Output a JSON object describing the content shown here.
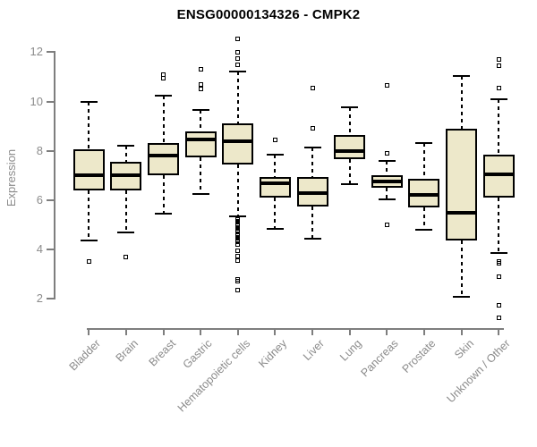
{
  "figure": {
    "background": "#ffffff"
  },
  "chart_data": {
    "type": "boxplot",
    "title": "ENSG00000134326 - CMPK2",
    "ylabel": "Expression",
    "xlabel": "",
    "ylim": [
      2,
      12
    ],
    "yticks": [
      2,
      4,
      6,
      8,
      10,
      12
    ],
    "grid": false,
    "legend": null,
    "categories": [
      "Bladder",
      "Brain",
      "Breast",
      "Gastric",
      "Hematopoietic cells",
      "Kidney",
      "Liver",
      "Lung",
      "Pancreas",
      "Prostate",
      "Skin",
      "Unknown / Other"
    ],
    "series": [
      {
        "name": "Bladder",
        "whisker_low": 4.35,
        "q1": 6.4,
        "median": 7.0,
        "q3": 8.05,
        "whisker_high": 10.0,
        "outliers": [
          3.5
        ]
      },
      {
        "name": "Brain",
        "whisker_low": 4.7,
        "q1": 6.4,
        "median": 7.0,
        "q3": 7.55,
        "whisker_high": 8.2,
        "outliers": [
          3.7
        ]
      },
      {
        "name": "Breast",
        "whisker_low": 5.45,
        "q1": 7.0,
        "median": 7.8,
        "q3": 8.3,
        "whisker_high": 10.25,
        "outliers": [
          11.1,
          10.95
        ]
      },
      {
        "name": "Gastric",
        "whisker_low": 6.25,
        "q1": 7.75,
        "median": 8.45,
        "q3": 8.8,
        "whisker_high": 9.65,
        "outliers": [
          11.3,
          10.7,
          10.5
        ]
      },
      {
        "name": "Hematopoietic cells",
        "whisker_low": 5.35,
        "q1": 7.45,
        "median": 8.4,
        "q3": 9.1,
        "whisker_high": 11.2,
        "outliers": [
          12.55,
          12.0,
          11.75,
          11.5,
          5.25,
          5.2,
          5.15,
          5.1,
          5.05,
          5.0,
          4.95,
          4.9,
          4.85,
          4.8,
          4.75,
          4.7,
          4.65,
          4.6,
          4.55,
          4.5,
          4.45,
          4.4,
          4.3,
          4.2,
          3.95,
          3.75,
          3.55,
          2.8,
          2.7,
          2.35
        ]
      },
      {
        "name": "Kidney",
        "whisker_low": 4.85,
        "q1": 6.1,
        "median": 6.7,
        "q3": 6.95,
        "whisker_high": 7.85,
        "outliers": [
          8.45
        ]
      },
      {
        "name": "Liver",
        "whisker_low": 4.45,
        "q1": 5.75,
        "median": 6.3,
        "q3": 6.95,
        "whisker_high": 8.15,
        "outliers": [
          10.55,
          8.9
        ]
      },
      {
        "name": "Lung",
        "whisker_low": 6.65,
        "q1": 7.65,
        "median": 8.0,
        "q3": 8.65,
        "whisker_high": 9.75,
        "outliers": []
      },
      {
        "name": "Pancreas",
        "whisker_low": 6.05,
        "q1": 6.5,
        "median": 6.75,
        "q3": 7.0,
        "whisker_high": 7.6,
        "outliers": [
          10.65,
          7.9,
          5.0
        ]
      },
      {
        "name": "Prostate",
        "whisker_low": 4.8,
        "q1": 5.7,
        "median": 6.2,
        "q3": 6.85,
        "whisker_high": 8.3,
        "outliers": []
      },
      {
        "name": "Skin",
        "whisker_low": 2.1,
        "q1": 4.35,
        "median": 5.5,
        "q3": 8.9,
        "whisker_high": 11.05,
        "outliers": []
      },
      {
        "name": "Unknown / Other",
        "whisker_low": 3.85,
        "q1": 6.1,
        "median": 7.05,
        "q3": 7.85,
        "whisker_high": 10.1,
        "outliers": [
          11.7,
          11.45,
          10.55,
          3.5,
          3.45,
          2.9,
          1.75,
          1.25
        ]
      }
    ],
    "colors": {
      "box_fill": "#EDE8CA",
      "box_border": "#000000",
      "median": "#000000",
      "whisker": "#000000",
      "outlier": "#000000",
      "axis": "#7E7E7E",
      "tick_label": "#8B8B8B",
      "title": "#000000",
      "background": "#FFFFFF"
    }
  }
}
